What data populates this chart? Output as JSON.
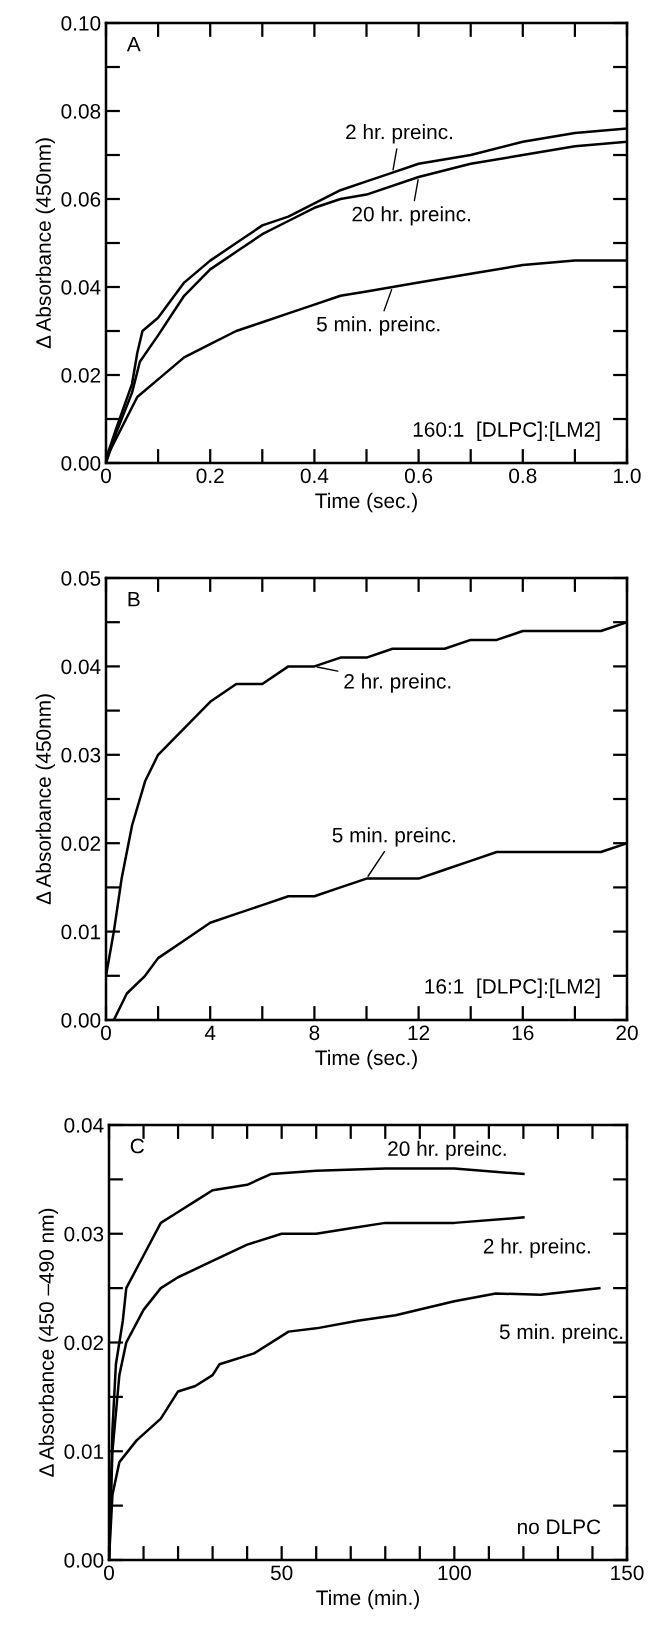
{
  "chart_data": [
    {
      "type": "line",
      "title": "A",
      "xlabel": "Time (sec.)",
      "ylabel": "Δ Absorbance (450nm)",
      "xlim": [
        0,
        1.0
      ],
      "ylim": [
        0,
        0.1
      ],
      "xticks": [
        {
          "value": 0,
          "label": "0"
        },
        {
          "value": 0.1,
          "label": null
        },
        {
          "value": 0.2,
          "label": "0.2"
        },
        {
          "value": 0.3,
          "label": null
        },
        {
          "value": 0.4,
          "label": "0.4"
        },
        {
          "value": 0.5,
          "label": null
        },
        {
          "value": 0.6,
          "label": "0.6"
        },
        {
          "value": 0.7,
          "label": null
        },
        {
          "value": 0.8,
          "label": "0.8"
        },
        {
          "value": 0.9,
          "label": null
        },
        {
          "value": 1.0,
          "label": "1.0"
        }
      ],
      "yticks": [
        {
          "value": 0,
          "label": "0.00"
        },
        {
          "value": 0.01,
          "label": null
        },
        {
          "value": 0.02,
          "label": "0.02"
        },
        {
          "value": 0.03,
          "label": null
        },
        {
          "value": 0.04,
          "label": "0.04"
        },
        {
          "value": 0.05,
          "label": null
        },
        {
          "value": 0.06,
          "label": "0.06"
        },
        {
          "value": 0.07,
          "label": null
        },
        {
          "value": 0.08,
          "label": "0.08"
        },
        {
          "value": 0.09,
          "label": null
        },
        {
          "value": 0.1,
          "label": "0.10"
        }
      ],
      "annotations": [
        "160:1  [DLPC]:[LM2]"
      ],
      "legend": "center",
      "series": [
        {
          "name": "2 hr. preinc.",
          "color": "#000000",
          "x": [
            0,
            0.02,
            0.05,
            0.06,
            0.07,
            0.1,
            0.15,
            0.2,
            0.25,
            0.3,
            0.35,
            0.4,
            0.45,
            0.5,
            0.55,
            0.6,
            0.7,
            0.8,
            0.9,
            1.0
          ],
          "values": [
            0.001,
            0.008,
            0.018,
            0.025,
            0.03,
            0.033,
            0.041,
            0.046,
            0.05,
            0.054,
            0.056,
            0.059,
            0.062,
            0.064,
            0.066,
            0.068,
            0.07,
            0.073,
            0.075,
            0.076
          ]
        },
        {
          "name": "20 hr. preinc.",
          "color": "#000000",
          "x": [
            0,
            0.02,
            0.05,
            0.065,
            0.1,
            0.15,
            0.2,
            0.25,
            0.3,
            0.35,
            0.4,
            0.45,
            0.5,
            0.6,
            0.7,
            0.8,
            0.9,
            1.0
          ],
          "values": [
            0.0,
            0.007,
            0.016,
            0.023,
            0.029,
            0.038,
            0.044,
            0.048,
            0.052,
            0.055,
            0.058,
            0.06,
            0.061,
            0.065,
            0.068,
            0.07,
            0.072,
            0.073
          ]
        },
        {
          "name": "5 min. preinc.",
          "color": "#000000",
          "x": [
            0,
            0.03,
            0.06,
            0.1,
            0.15,
            0.2,
            0.25,
            0.3,
            0.35,
            0.4,
            0.45,
            0.5,
            0.55,
            0.6,
            0.7,
            0.8,
            0.9,
            1.0
          ],
          "values": [
            0.001,
            0.008,
            0.015,
            0.019,
            0.024,
            0.027,
            0.03,
            0.032,
            0.034,
            0.036,
            0.038,
            0.039,
            0.04,
            0.041,
            0.043,
            0.045,
            0.046,
            0.046
          ]
        }
      ]
    },
    {
      "type": "line",
      "title": "B",
      "xlabel": "Time (sec.)",
      "ylabel": "Δ Absorbance (450nm)",
      "xlim": [
        0,
        20
      ],
      "ylim": [
        0,
        0.05
      ],
      "xticks": [
        {
          "value": 0,
          "label": "0"
        },
        {
          "value": 2,
          "label": null
        },
        {
          "value": 4,
          "label": "4"
        },
        {
          "value": 6,
          "label": null
        },
        {
          "value": 8,
          "label": "8"
        },
        {
          "value": 10,
          "label": null
        },
        {
          "value": 12,
          "label": "12"
        },
        {
          "value": 14,
          "label": null
        },
        {
          "value": 16,
          "label": "16"
        },
        {
          "value": 18,
          "label": null
        },
        {
          "value": 20,
          "label": "20"
        }
      ],
      "yticks": [
        {
          "value": 0,
          "label": "0.00"
        },
        {
          "value": 0.005,
          "label": null
        },
        {
          "value": 0.01,
          "label": "0.01"
        },
        {
          "value": 0.015,
          "label": null
        },
        {
          "value": 0.02,
          "label": "0.02"
        },
        {
          "value": 0.025,
          "label": null
        },
        {
          "value": 0.03,
          "label": "0.03"
        },
        {
          "value": 0.035,
          "label": null
        },
        {
          "value": 0.04,
          "label": "0.04"
        },
        {
          "value": 0.045,
          "label": null
        },
        {
          "value": 0.05,
          "label": "0.05"
        }
      ],
      "annotations": [
        "16:1  [DLPC]:[LM2]"
      ],
      "legend": "center",
      "series": [
        {
          "name": "2 hr. preinc.",
          "color": "#000000",
          "x": [
            0,
            0.3,
            0.6,
            1,
            1.5,
            2,
            3,
            4,
            5,
            6,
            7,
            8,
            9,
            10,
            11,
            12,
            13,
            14,
            15,
            16,
            17,
            18,
            19,
            20
          ],
          "values": [
            0.005,
            0.01,
            0.016,
            0.022,
            0.027,
            0.03,
            0.033,
            0.036,
            0.038,
            0.038,
            0.04,
            0.04,
            0.041,
            0.041,
            0.042,
            0.042,
            0.042,
            0.043,
            0.043,
            0.044,
            0.044,
            0.044,
            0.044,
            0.045
          ]
        },
        {
          "name": "5 min. preinc.",
          "color": "#000000",
          "x": [
            0.3,
            0.8,
            1.5,
            2,
            3,
            4,
            5,
            6,
            7,
            8,
            9,
            10,
            11,
            12,
            13,
            14,
            15,
            16,
            17,
            18,
            19,
            20
          ],
          "values": [
            0.0,
            0.003,
            0.005,
            0.007,
            0.009,
            0.011,
            0.012,
            0.013,
            0.014,
            0.014,
            0.015,
            0.016,
            0.016,
            0.016,
            0.017,
            0.018,
            0.019,
            0.019,
            0.019,
            0.019,
            0.019,
            0.02
          ]
        }
      ]
    },
    {
      "type": "line",
      "title": "C",
      "xlabel": "Time (min.)",
      "ylabel": "Δ Absorbance (450 –490 nm)",
      "xlim": [
        0,
        150
      ],
      "ylim": [
        0,
        0.04
      ],
      "xticks": [
        {
          "value": 0,
          "label": "0"
        },
        {
          "value": 10,
          "label": null
        },
        {
          "value": 20,
          "label": null
        },
        {
          "value": 30,
          "label": null
        },
        {
          "value": 40,
          "label": null
        },
        {
          "value": 50,
          "label": "50"
        },
        {
          "value": 60,
          "label": null
        },
        {
          "value": 70,
          "label": null
        },
        {
          "value": 80,
          "label": null
        },
        {
          "value": 90,
          "label": null
        },
        {
          "value": 100,
          "label": "100"
        },
        {
          "value": 110,
          "label": null
        },
        {
          "value": 120,
          "label": null
        },
        {
          "value": 130,
          "label": null
        },
        {
          "value": 140,
          "label": null
        },
        {
          "value": 150,
          "label": "150"
        }
      ],
      "yticks": [
        {
          "value": 0,
          "label": "0.00"
        },
        {
          "value": 0.005,
          "label": null
        },
        {
          "value": 0.01,
          "label": "0.01"
        },
        {
          "value": 0.015,
          "label": null
        },
        {
          "value": 0.02,
          "label": "0.02"
        },
        {
          "value": 0.025,
          "label": null
        },
        {
          "value": 0.03,
          "label": "0.03"
        },
        {
          "value": 0.035,
          "label": null
        },
        {
          "value": 0.04,
          "label": "0.04"
        }
      ],
      "annotations": [
        "no DLPC"
      ],
      "legend": "top right",
      "series": [
        {
          "name": "20 hr. preinc.",
          "color": "#000000",
          "x": [
            0,
            1,
            2,
            4,
            5,
            10,
            15,
            20,
            25,
            30,
            40,
            47,
            60,
            80,
            100,
            120
          ],
          "values": [
            0,
            0.012,
            0.018,
            0.022,
            0.025,
            0.028,
            0.031,
            0.032,
            0.033,
            0.034,
            0.0345,
            0.0355,
            0.0358,
            0.036,
            0.036,
            0.0355
          ]
        },
        {
          "name": "2 hr. preinc.",
          "color": "#000000",
          "x": [
            0,
            1,
            3,
            5,
            10,
            15,
            20,
            30,
            40,
            50,
            60,
            70,
            80,
            100,
            120
          ],
          "values": [
            0,
            0.01,
            0.017,
            0.02,
            0.023,
            0.025,
            0.026,
            0.0275,
            0.029,
            0.03,
            0.03,
            0.0305,
            0.031,
            0.031,
            0.0315
          ]
        },
        {
          "name": "5 min. preinc.",
          "color": "#000000",
          "x": [
            0,
            1,
            3,
            8,
            15,
            20,
            25,
            30,
            32,
            42,
            52,
            60,
            72,
            83,
            100,
            112,
            125,
            142
          ],
          "values": [
            0,
            0.006,
            0.009,
            0.011,
            0.013,
            0.0155,
            0.016,
            0.017,
            0.018,
            0.019,
            0.021,
            0.0213,
            0.022,
            0.0225,
            0.0238,
            0.0245,
            0.0244,
            0.025
          ]
        }
      ]
    }
  ]
}
